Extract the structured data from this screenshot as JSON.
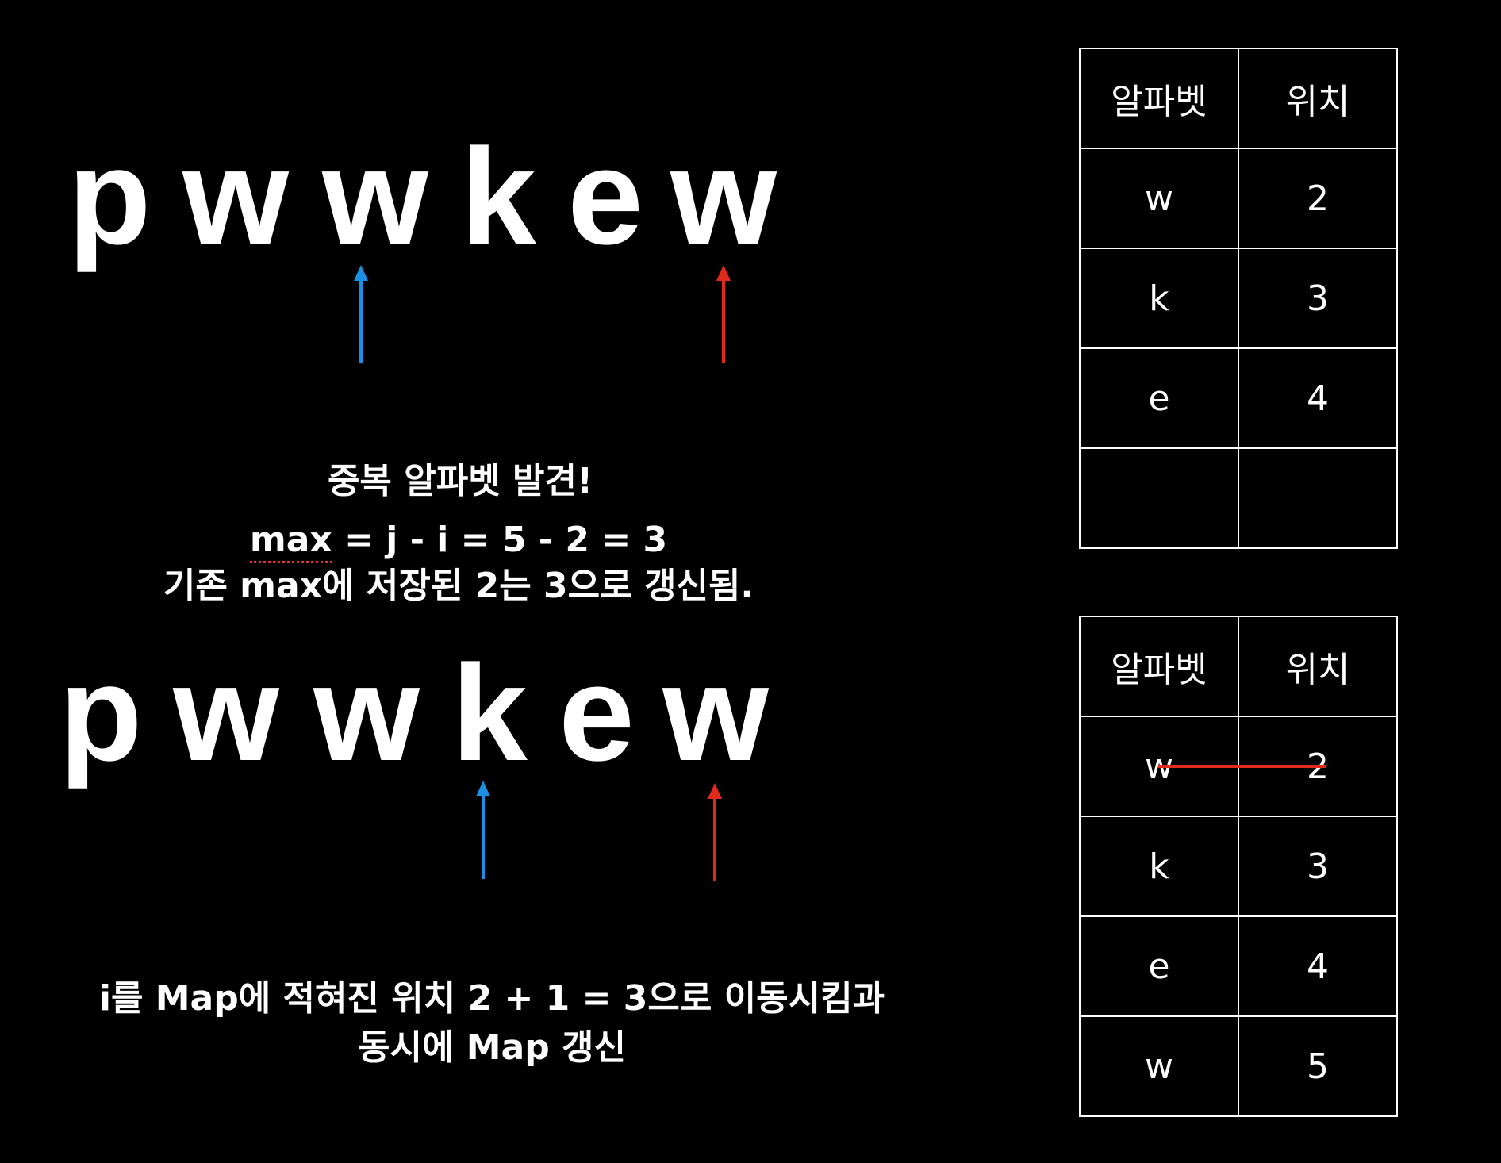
{
  "colors": {
    "background": "#000000",
    "text": "#ffffff",
    "pointer_i": "#1a8fe3",
    "pointer_j": "#e02a1b",
    "strike": "#e02a1b"
  },
  "string_letters": [
    "p",
    "w",
    "w",
    "k",
    "e",
    "w"
  ],
  "step1": {
    "pointer_i_index": 2,
    "pointer_j_index": 5,
    "found_text": "중복 알파벳 발견!",
    "calc_max_word": "max",
    "calc_rest": " = j - i = 5 - 2 = 3",
    "update_text": "기존 max에 저장된 2는 3으로 갱신됨.",
    "table": {
      "headers": [
        "알파벳",
        "위치"
      ],
      "rows": [
        {
          "letter": "w",
          "position": "2"
        },
        {
          "letter": "k",
          "position": "3"
        },
        {
          "letter": "e",
          "position": "4"
        },
        {
          "letter": "",
          "position": ""
        }
      ]
    }
  },
  "step2": {
    "pointer_i_index": 3,
    "pointer_j_index": 5,
    "move_text_line1": "i를 Map에 적혀진 위치 2 + 1 = 3으로 이동시킴과",
    "move_text_line2": "동시에 Map 갱신",
    "table": {
      "headers": [
        "알파벳",
        "위치"
      ],
      "rows": [
        {
          "letter": "w",
          "position": "2",
          "struck": true
        },
        {
          "letter": "k",
          "position": "3"
        },
        {
          "letter": "e",
          "position": "4"
        },
        {
          "letter": "w",
          "position": "5"
        }
      ]
    }
  }
}
